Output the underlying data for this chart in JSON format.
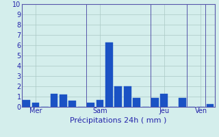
{
  "bar_values": [
    0.7,
    0.4,
    0.0,
    1.3,
    1.2,
    0.6,
    0.0,
    0.4,
    0.7,
    6.3,
    2.0,
    2.0,
    0.9,
    0.0,
    0.9,
    1.3,
    0.0,
    0.9,
    0.0,
    0.0,
    0.3
  ],
  "day_labels": [
    "Mer",
    "Sam",
    "Jeu",
    "Ven"
  ],
  "day_positions": [
    1,
    8,
    15,
    19
  ],
  "day_line_positions": [
    0,
    7,
    14,
    18,
    20
  ],
  "xlabel": "Précipitations 24h ( mm )",
  "ylim": [
    0,
    10
  ],
  "yticks": [
    0,
    1,
    2,
    3,
    4,
    5,
    6,
    7,
    8,
    9,
    10
  ],
  "bar_color": "#1a52c4",
  "bar_edge_color": "#1a52c4",
  "bg_color": "#d4eeec",
  "grid_color": "#aac8c5",
  "axis_color": "#5555aa",
  "text_color": "#2222aa",
  "xlabel_fontsize": 8,
  "tick_fontsize": 7
}
